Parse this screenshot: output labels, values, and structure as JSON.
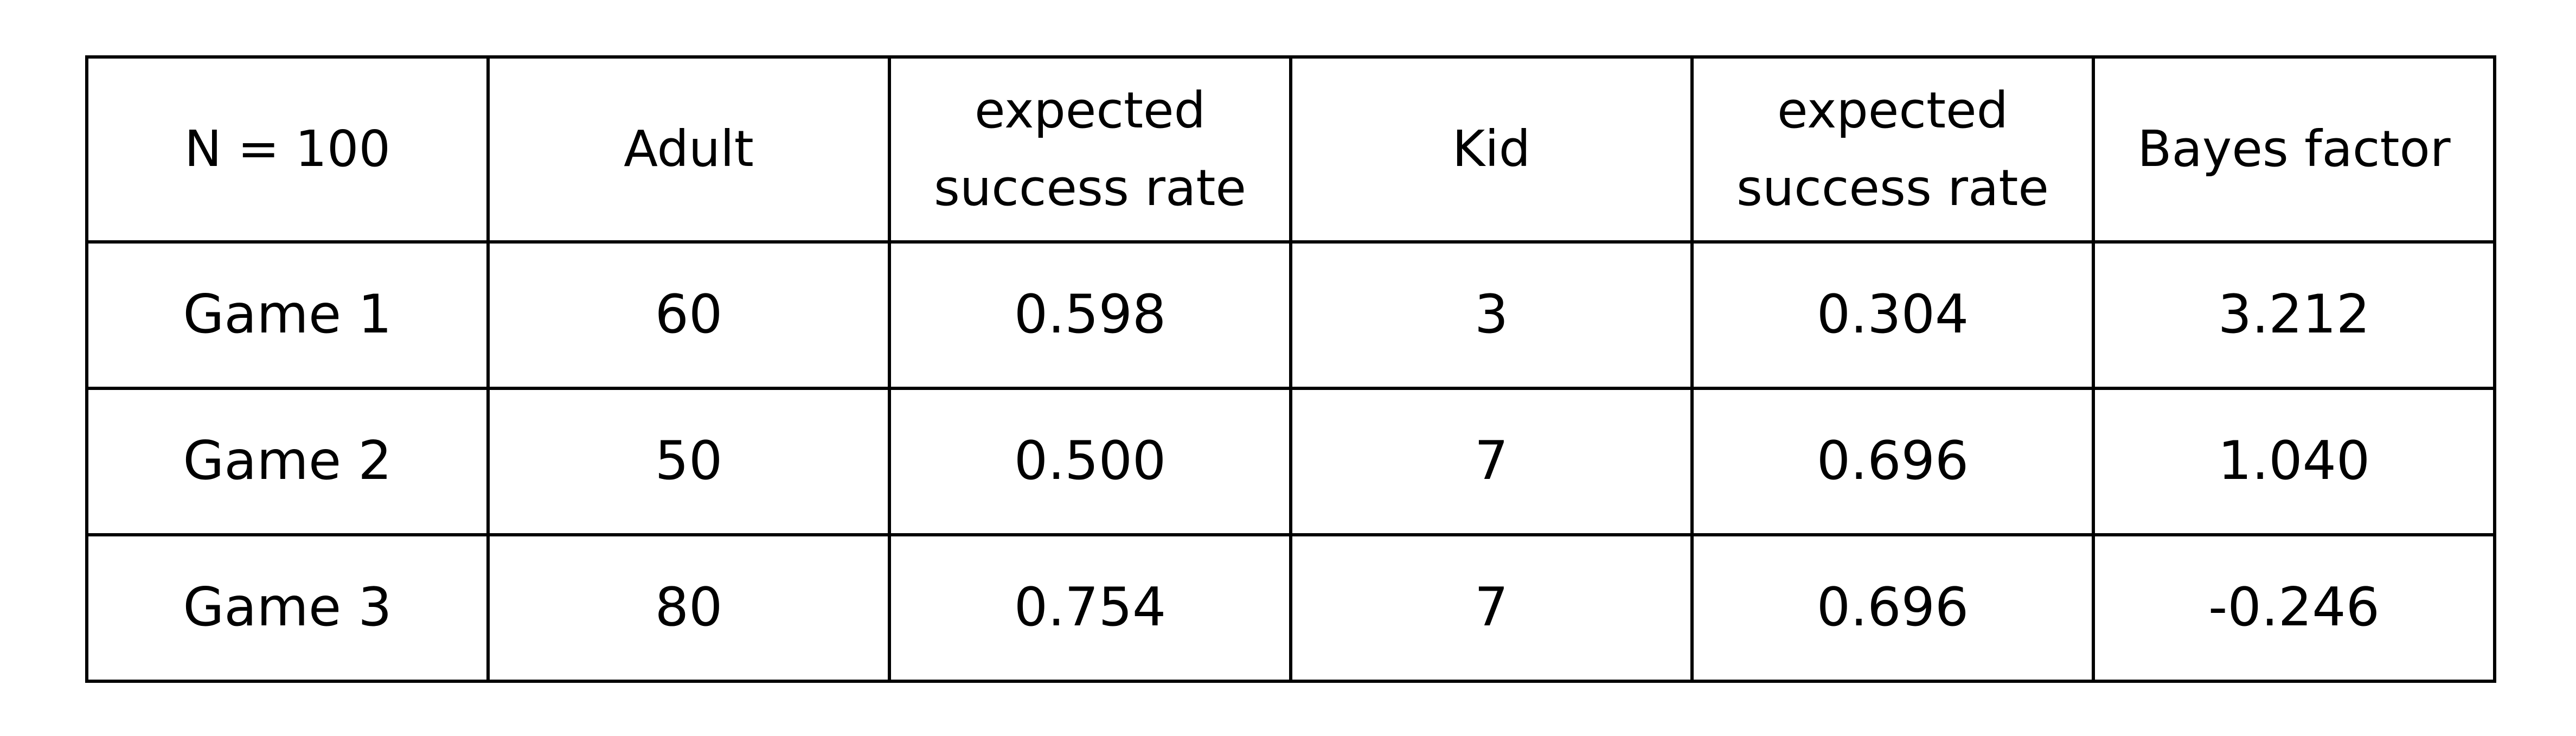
{
  "table": {
    "headers": [
      "N = 100",
      "Adult",
      "expected success rate",
      "Kid",
      "expected success rate",
      "Bayes factor"
    ],
    "rows": [
      [
        "Game 1",
        "60",
        "0.598",
        "3",
        "0.304",
        "3.212"
      ],
      [
        "Game 2",
        "50",
        "0.500",
        "7",
        "0.696",
        "1.040"
      ],
      [
        "Game 3",
        "80",
        "0.754",
        "7",
        "0.696",
        "-0.246"
      ]
    ]
  }
}
